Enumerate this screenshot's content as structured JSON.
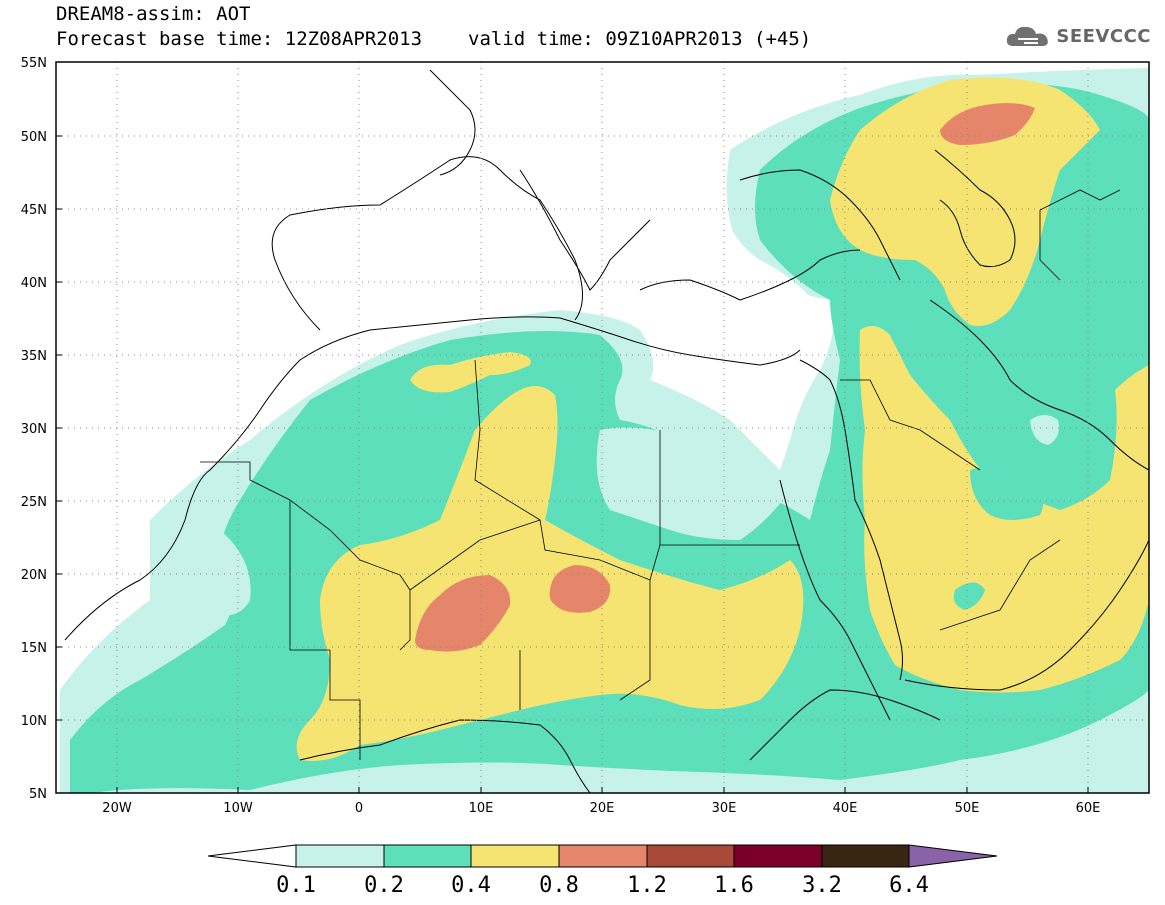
{
  "header": {
    "title": "DREAM8-assim: AOT",
    "base_time": "Forecast base time: 12Z08APR2013",
    "valid_time": "valid time: 09Z10APR2013 (+45)"
  },
  "brand": {
    "name": "SEEVCCC",
    "icon": "cloud-icon"
  },
  "map": {
    "lon_range": [
      -25,
      65
    ],
    "lat_range": [
      5,
      55
    ],
    "lat_ticks": [
      "5N",
      "10N",
      "15N",
      "20N",
      "25N",
      "30N",
      "35N",
      "40N",
      "45N",
      "50N",
      "55N"
    ],
    "lon_ticks": [
      "20W",
      "10W",
      "0",
      "10E",
      "20E",
      "30E",
      "40E",
      "50E",
      "60E"
    ],
    "grid": "dotted"
  },
  "colorbar": {
    "labels": [
      "0.1",
      "0.2",
      "0.4",
      "0.8",
      "1.2",
      "1.6",
      "3.2",
      "6.4"
    ],
    "colors": [
      "#ffffff",
      "#c6f2ea",
      "#5ddfbb",
      "#f6e472",
      "#e5866a",
      "#a8493a",
      "#7b0029",
      "#3a2512",
      "#8a62a8"
    ]
  },
  "legend_colors": {
    "lt01": "#ffffff",
    "c01_02": "#c6f2ea",
    "c02_04": "#5ddfbb",
    "c04_08": "#f6e472",
    "c08_12": "#e5866a"
  }
}
